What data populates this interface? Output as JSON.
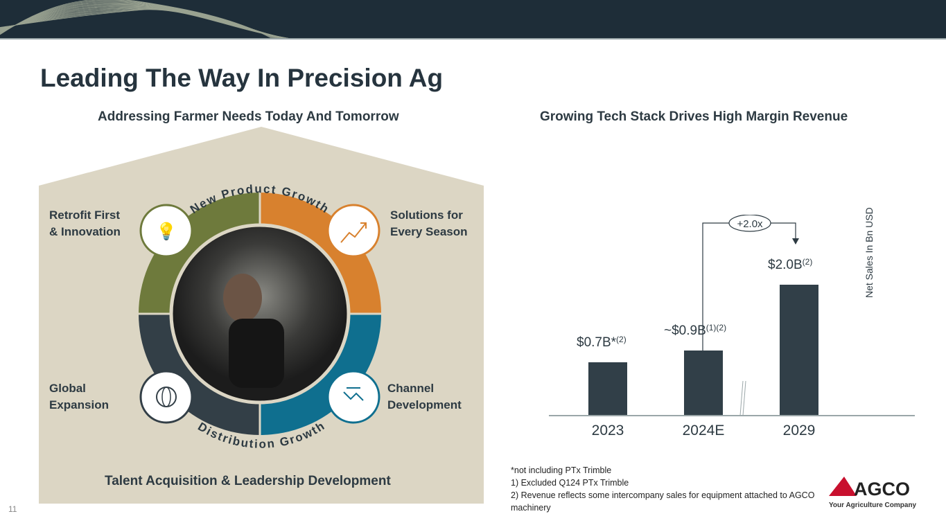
{
  "title": "Leading The Way In Precision Ag",
  "left": {
    "subtitle": "Addressing Farmer Needs Today And Tomorrow",
    "arc_top": "New Product Growth",
    "arc_bottom": "Distribution Growth",
    "quadrants": [
      {
        "label1": "Retrofit First",
        "label2": "& Innovation",
        "icon": "lightbulb-icon"
      },
      {
        "label1": "Solutions for",
        "label2": "Every Season",
        "icon": "growth-chart-icon"
      },
      {
        "label1": "Global",
        "label2": "Expansion",
        "icon": "globe-icon"
      },
      {
        "label1": "Channel",
        "label2": "Development",
        "icon": "handshake-icon"
      }
    ],
    "footer": "Talent Acquisition & Leadership Development",
    "colors": {
      "olive": "#6e7a3c",
      "orange": "#d8812e",
      "teal": "#0f6f8f",
      "dark": "#333f47",
      "panel": "#dcd6c4"
    }
  },
  "right": {
    "subtitle": "Growing Tech Stack Drives High Margin Revenue"
  },
  "chart_data": {
    "type": "bar",
    "title": "Growing Tech Stack Drives High Margin Revenue",
    "ylabel": "Net Sales In Bn USD",
    "categories": [
      "2023",
      "2024E",
      "2029"
    ],
    "values": [
      0.7,
      0.9,
      2.0
    ],
    "labels": [
      {
        "main": "$0.7B*",
        "sup": "(2)"
      },
      {
        "main": "~$0.9B",
        "sup": "(1)(2)"
      },
      {
        "main": "$2.0B",
        "sup": "(2)"
      }
    ],
    "annotation": "+2.0x",
    "axis_break": "between 2024E and 2029"
  },
  "footnotes": [
    "*not including PTx Trimble",
    "1) Excluded Q124 PTx Trimble",
    "2) Revenue reflects some intercompany sales for equipment attached to AGCO machinery"
  ],
  "page_number": "11",
  "logo": {
    "name": "AGCO",
    "tagline": "Your Agriculture Company"
  }
}
